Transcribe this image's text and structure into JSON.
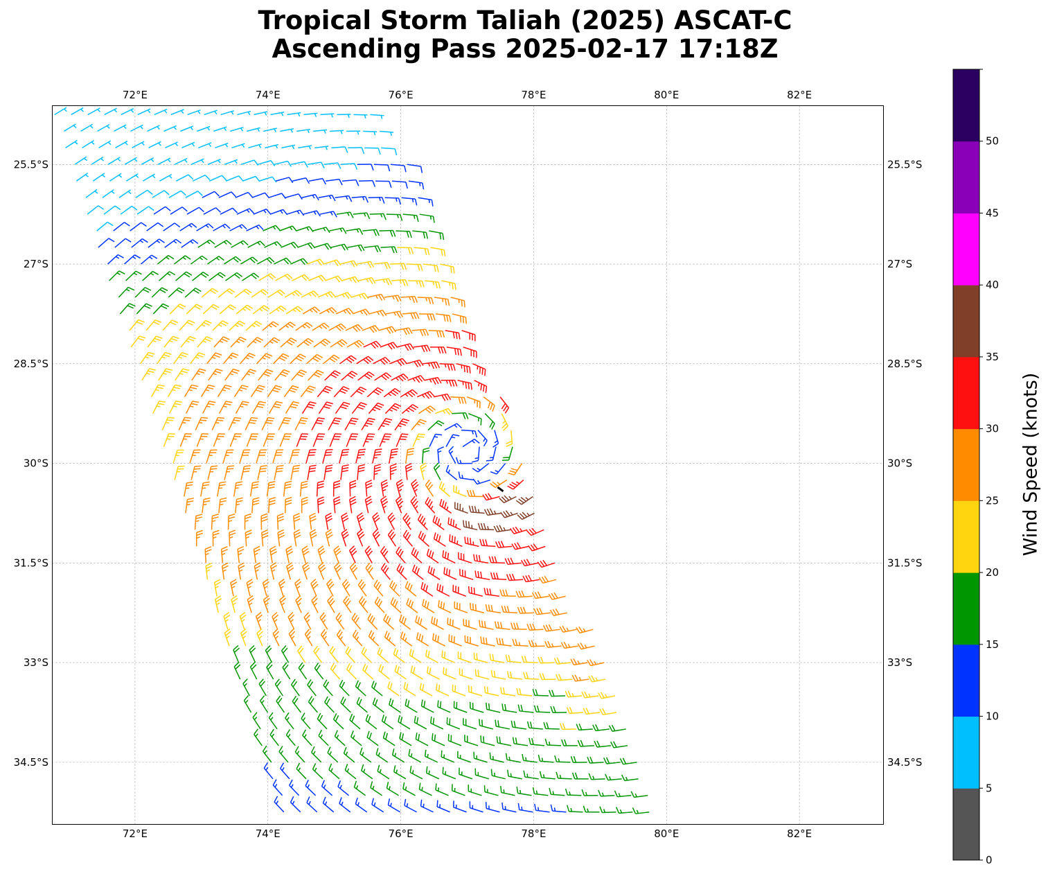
{
  "title": {
    "line1": "Tropical Storm Taliah (2025) ASCAT-C",
    "line2": "Ascending Pass 2025-02-17 17:18Z"
  },
  "colorbar": {
    "label": "Wind Speed (knots)",
    "ticks": [
      "0",
      "5",
      "10",
      "15",
      "20",
      "25",
      "30",
      "35",
      "40",
      "45",
      "50"
    ],
    "bins": [
      0,
      5,
      10,
      15,
      20,
      25,
      30,
      35,
      40,
      45,
      50,
      55
    ],
    "colors": [
      "#555555",
      "#00bfff",
      "#0033ff",
      "#009600",
      "#ffd510",
      "#ff8c00",
      "#ff1010",
      "#7f3f28",
      "#ff00ff",
      "#8a00b8",
      "#2a0060"
    ]
  },
  "chart_data": {
    "type": "wind-barb map",
    "title": "Tropical Storm Taliah (2025) ASCAT-C Ascending Pass 2025-02-17 17:18Z",
    "lon_range": [
      70.75,
      83.26
    ],
    "lat_range": [
      -35.43,
      -24.61
    ],
    "lon_ticks": [
      "72°E",
      "74°E",
      "76°E",
      "78°E",
      "80°E",
      "82°E"
    ],
    "lon_tick_values": [
      72,
      74,
      76,
      78,
      80,
      82
    ],
    "lat_ticks": [
      "25.5°S",
      "27°S",
      "28.5°S",
      "30°S",
      "31.5°S",
      "33°S",
      "34.5°S"
    ],
    "lat_tick_values": [
      -25.5,
      -27,
      -28.5,
      -30,
      -31.5,
      -33,
      -34.5
    ],
    "storm_center": {
      "lon": 77.5,
      "lat": -30.4
    },
    "circulation_center": {
      "lon": 77.0,
      "lat": -29.8
    },
    "swath": {
      "west_edge": [
        [
          70.8,
          -24.8
        ],
        [
          74.3,
          -35.3
        ]
      ],
      "east_edge": [
        [
          75.8,
          -24.7
        ],
        [
          80.0,
          -35.2
        ]
      ]
    },
    "max_wind_kt": 37,
    "grid": true
  }
}
